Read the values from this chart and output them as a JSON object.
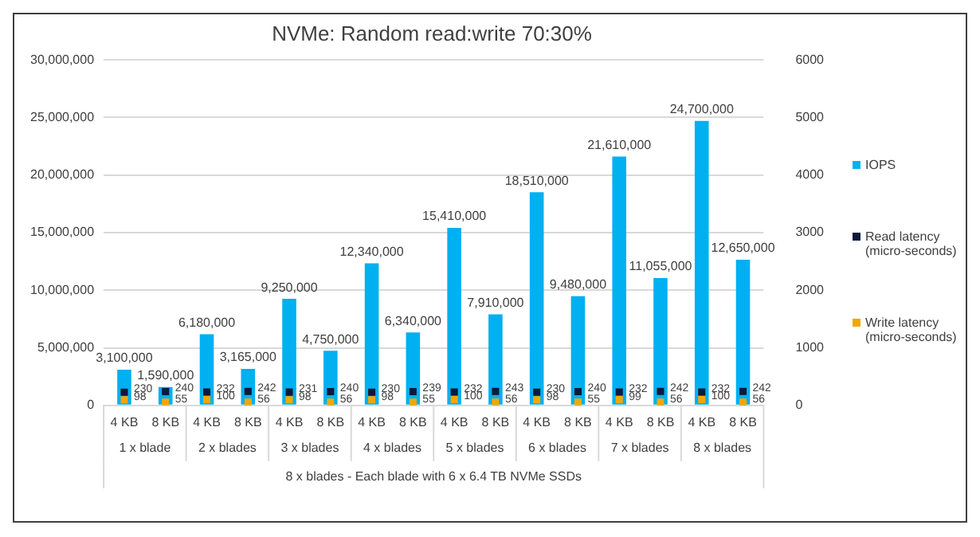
{
  "chart_data": {
    "type": "bar",
    "title": "NVMe: Random read:write 70:30%",
    "categories": [
      "4 KB",
      "8 KB",
      "4 KB",
      "8 KB",
      "4 KB",
      "8 KB",
      "4 KB",
      "8 KB",
      "4 KB",
      "8 KB",
      "4 KB",
      "8 KB",
      "4 KB",
      "8 KB",
      "4 KB",
      "8 KB"
    ],
    "series": [
      {
        "name": "IOPS",
        "color": "#00b0f0",
        "values": [
          3100000,
          1590000,
          6180000,
          3165000,
          9250000,
          4750000,
          12340000,
          6340000,
          15410000,
          7910000,
          18510000,
          9480000,
          21610000,
          11055000,
          24700000,
          12650000
        ],
        "value_labels": [
          "3,100,000",
          "1,590,000",
          "6,180,000",
          "3,165,000",
          "9,250,000",
          "4,750,000",
          "12,340,000",
          "6,340,000",
          "15,410,000",
          "7,910,000",
          "18,510,000",
          "9,480,000",
          "21,610,000",
          "11,055,000",
          "24,700,000",
          "12,650,000"
        ]
      },
      {
        "name": "Read latency (micro-seconds)",
        "type": "scatter",
        "axis": "y2",
        "color": "#0b1a3c",
        "values": [
          230,
          240,
          232,
          242,
          231,
          240,
          230,
          239,
          232,
          243,
          230,
          240,
          232,
          242,
          232,
          242
        ]
      },
      {
        "name": "Write latency (micro-seconds)",
        "type": "scatter",
        "axis": "y2",
        "color": "#f0a800",
        "values": [
          98,
          55,
          100,
          56,
          98,
          56,
          98,
          55,
          100,
          56,
          98,
          55,
          99,
          56,
          100,
          56
        ]
      }
    ],
    "data_labels": true,
    "ylim": [
      0,
      30000000
    ],
    "yticks": [
      0,
      {
        "value": 5000000,
        "label": "5,000,000"
      },
      {
        "value": 10000000,
        "label": "10,000,000"
      },
      {
        "value": 15000000,
        "label": "15,000,000"
      },
      {
        "value": 20000000,
        "label": "20,000,000"
      },
      {
        "value": 25000000,
        "label": "25,000,000"
      },
      {
        "value": 30000000,
        "label": "30,000,000"
      }
    ],
    "y2lim": [
      0,
      6000
    ],
    "y2ticks": [
      0,
      1000,
      2000,
      3000,
      4000,
      5000,
      6000
    ],
    "grid": "y",
    "legend": "right",
    "marker": "square",
    "annotations": [
      "1 x blade",
      "2 x blades",
      "3 x blades",
      "4 x blades",
      "5 x blades",
      "6 x blades",
      "7 x blades",
      "8 x blades",
      "8 x blades - Each blade with 6 x 6.4 TB NVMe SSDs"
    ]
  }
}
